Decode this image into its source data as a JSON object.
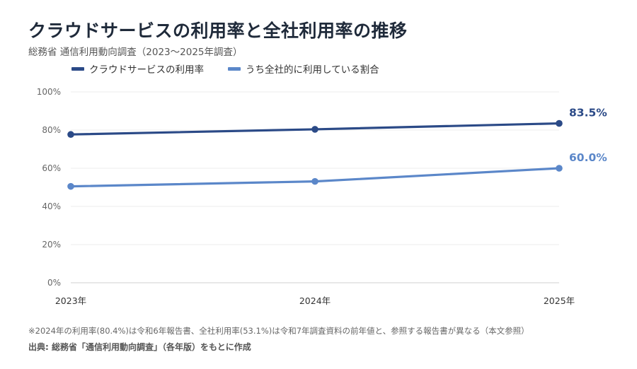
{
  "chart_data": {
    "type": "line",
    "title": "クラウドサービスの利用率と全社利用率の推移",
    "subtitle": "総務省 通信利用動向調査（2023〜2025年調査）",
    "categories": [
      "2023年",
      "2024年",
      "2025年"
    ],
    "series": [
      {
        "name": "クラウドサービスの利用率",
        "values": [
          77.7,
          80.4,
          83.5
        ],
        "color": "#2b4a87",
        "end_label": "83.5%"
      },
      {
        "name": "うち全社的に利用している割合",
        "values": [
          50.5,
          53.1,
          60.0
        ],
        "color": "#5b87c9",
        "end_label": "60.0%"
      }
    ],
    "yticks": [
      "0%",
      "20%",
      "40%",
      "60%",
      "80%",
      "100%"
    ],
    "ylim": [
      0,
      100
    ],
    "grid": true,
    "legend_position": "top-left",
    "note": "※2024年の利用率(80.4%)は令和6年報告書、全社利用率(53.1%)は令和7年調査資料の前年値と、参照する報告書が異なる（本文参照）",
    "source": "出典: 総務省「通信利用動向調査」（各年版）をもとに作成"
  }
}
